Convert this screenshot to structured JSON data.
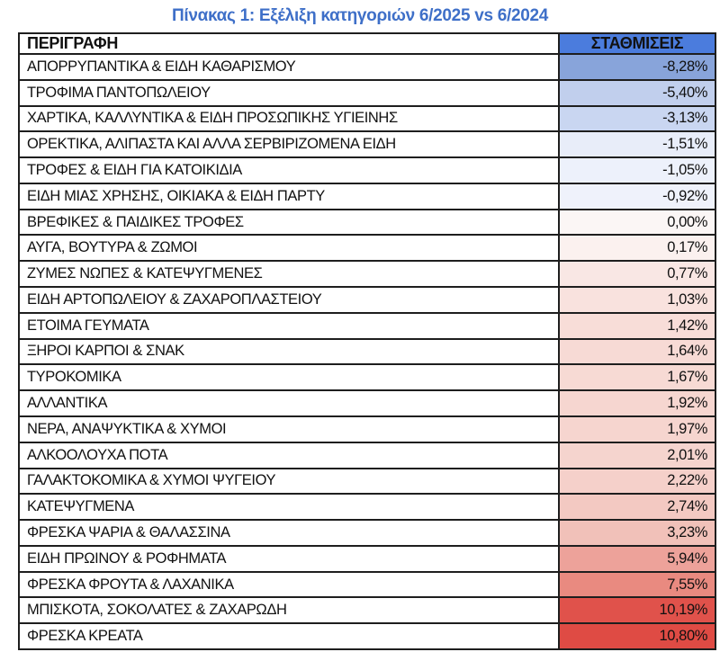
{
  "title": "Πίνακας 1: Εξέλιξη κατηγοριών 6/2025 vs 6/2024",
  "colors": {
    "title_text": "#3E6FC8",
    "header_weights_bg": "#4B7CDD",
    "border": "#1E1E1E",
    "scale_min_blue": "#88A4DA",
    "scale_mid_white": "#FBF6F5",
    "scale_max_red": "#DF4B44"
  },
  "table": {
    "headers": {
      "description": "ΠΕΡΙΓΡΑΦΗ",
      "weights": "ΣΤΑΘΜΙΣΕΙΣ"
    },
    "rows": [
      {
        "label": "ΑΠΟΡΡΥΠΑΝΤΙΚΑ & ΕΙΔΗ ΚΑΘΑΡΙΣΜΟΥ",
        "value": "-8,28%",
        "color": "#88A4DA"
      },
      {
        "label": "ΤΡΟΦΙΜΑ ΠΑΝΤΟΠΩΛΕΙΟΥ",
        "value": "-5,40%",
        "color": "#C1CFED"
      },
      {
        "label": "ΧΑΡΤΙΚΑ, ΚΑΛΛΥΝΤΙΚΑ & ΕΙΔΗ ΠΡΟΣΩΠΙΚΗΣ ΥΓΙΕΙΝΗΣ",
        "value": "-3,13%",
        "color": "#C9D6F1"
      },
      {
        "label": "ΟΡΕΚΤΙΚΑ, ΑΛΙΠΑΣΤΑ ΚΑΙ ΑΛΛΑ ΣΕΡΒΙΡΙΖΟΜΕΝΑ ΕΙΔΗ",
        "value": "-1,51%",
        "color": "#E8EDF9"
      },
      {
        "label": "ΤΡΟΦΕΣ & ΕΙΔΗ ΓΙΑ ΚΑΤΟΙΚΙΔΙΑ",
        "value": "-1,05%",
        "color": "#EDF1FB"
      },
      {
        "label": "ΕΙΔΗ ΜΙΑΣ ΧΡΗΣΗΣ, ΟΙΚΙΑΚΑ & ΕΙΔΗ ΠΑΡΤΥ",
        "value": "-0,92%",
        "color": "#EFF2FB"
      },
      {
        "label": "ΒΡΕΦΙΚΕΣ & ΠΑΙΔΙΚΕΣ ΤΡΟΦΕΣ",
        "value": "0,00%",
        "color": "#FBF6F5"
      },
      {
        "label": "ΑΥΓΑ, ΒΟΥΤΥΡΑ & ΖΩΜΟΙ",
        "value": "0,17%",
        "color": "#FBF1EF"
      },
      {
        "label": "ΖΥΜΕΣ ΝΩΠΕΣ & ΚΑΤΕΨΥΓΜΕΝΕΣ",
        "value": "0,77%",
        "color": "#F9E7E4"
      },
      {
        "label": "ΕΙΔΗ ΑΡΤΟΠΩΛΕΙΟΥ & ΖΑΧΑΡΟΠΛΑΣΤΕΙΟΥ",
        "value": "1,03%",
        "color": "#F9E2DE"
      },
      {
        "label": "ΕΤΟΙΜΑ ΓΕΥΜΑΤΑ",
        "value": "1,42%",
        "color": "#F8DDD8"
      },
      {
        "label": "ΞΗΡΟΙ ΚΑΡΠΟΙ & ΣΝΑΚ",
        "value": "1,64%",
        "color": "#F7DAD5"
      },
      {
        "label": "ΤΥΡΟΚΟΜΙΚΑ",
        "value": "1,67%",
        "color": "#F7DAD4"
      },
      {
        "label": "ΑΛΛΑΝΤΙΚΑ",
        "value": "1,92%",
        "color": "#F6D6D0"
      },
      {
        "label": "ΝΕΡΑ, ΑΝΑΨΥΚΤΙΚΑ & ΧΥΜΟΙ",
        "value": "1,97%",
        "color": "#F6D5CF"
      },
      {
        "label": "ΑΛΚΟΟΛΟΥΧΑ ΠΟΤΑ",
        "value": "2,01%",
        "color": "#F5D4CE"
      },
      {
        "label": "ΓΑΛΑΚΤΟΚΟΜΙΚΑ & ΧΥΜΟΙ ΨΥΓΕΙΟΥ",
        "value": "2,22%",
        "color": "#F5D0CA"
      },
      {
        "label": "ΚΑΤΕΨΥΓΜΕΝΑ",
        "value": "2,74%",
        "color": "#F3C9C2"
      },
      {
        "label": "ΦΡΕΣΚΑ ΨΑΡΙΑ & ΘΑΛΑΣΣΙΝΑ",
        "value": "3,23%",
        "color": "#F1C1B9"
      },
      {
        "label": "ΕΙΔΗ ΠΡΩΙΝΟΥ & ΡΟΦΗΜΑΤΑ",
        "value": "5,94%",
        "color": "#EDA29A"
      },
      {
        "label": "ΦΡΕΣΚΑ ΦΡΟΥΤΑ & ΛΑΧΑΝΙΚΑ",
        "value": "7,55%",
        "color": "#E98A80"
      },
      {
        "label": "ΜΠΙΣΚΟΤΑ, ΣΟΚΟΛΑΤΕΣ & ΖΑΧΑΡΩΔΗ",
        "value": "10,19%",
        "color": "#E0524B"
      },
      {
        "label": "ΦΡΕΣΚΑ ΚΡΕΑΤΑ",
        "value": "10,80%",
        "color": "#DF4B44"
      }
    ]
  },
  "chart_data": {
    "type": "table",
    "title": "Πίνακας 1: Εξέλιξη κατηγοριών 6/2025 vs 6/2024",
    "columns": [
      "ΠΕΡΙΓΡΑΦΗ",
      "ΣΤΑΘΜΙΣΕΙΣ"
    ],
    "categories": [
      "ΑΠΟΡΡΥΠΑΝΤΙΚΑ & ΕΙΔΗ ΚΑΘΑΡΙΣΜΟΥ",
      "ΤΡΟΦΙΜΑ ΠΑΝΤΟΠΩΛΕΙΟΥ",
      "ΧΑΡΤΙΚΑ, ΚΑΛΛΥΝΤΙΚΑ & ΕΙΔΗ ΠΡΟΣΩΠΙΚΗΣ ΥΓΙΕΙΝΗΣ",
      "ΟΡΕΚΤΙΚΑ, ΑΛΙΠΑΣΤΑ ΚΑΙ ΑΛΛΑ ΣΕΡΒΙΡΙΖΟΜΕΝΑ ΕΙΔΗ",
      "ΤΡΟΦΕΣ & ΕΙΔΗ ΓΙΑ ΚΑΤΟΙΚΙΔΙΑ",
      "ΕΙΔΗ ΜΙΑΣ ΧΡΗΣΗΣ, ΟΙΚΙΑΚΑ & ΕΙΔΗ ΠΑΡΤΥ",
      "ΒΡΕΦΙΚΕΣ & ΠΑΙΔΙΚΕΣ ΤΡΟΦΕΣ",
      "ΑΥΓΑ, ΒΟΥΤΥΡΑ & ΖΩΜΟΙ",
      "ΖΥΜΕΣ ΝΩΠΕΣ & ΚΑΤΕΨΥΓΜΕΝΕΣ",
      "ΕΙΔΗ ΑΡΤΟΠΩΛΕΙΟΥ & ΖΑΧΑΡΟΠΛΑΣΤΕΙΟΥ",
      "ΕΤΟΙΜΑ ΓΕΥΜΑΤΑ",
      "ΞΗΡΟΙ ΚΑΡΠΟΙ & ΣΝΑΚ",
      "ΤΥΡΟΚΟΜΙΚΑ",
      "ΑΛΛΑΝΤΙΚΑ",
      "ΝΕΡΑ, ΑΝΑΨΥΚΤΙΚΑ & ΧΥΜΟΙ",
      "ΑΛΚΟΟΛΟΥΧΑ ΠΟΤΑ",
      "ΓΑΛΑΚΤΟΚΟΜΙΚΑ & ΧΥΜΟΙ ΨΥΓΕΙΟΥ",
      "ΚΑΤΕΨΥΓΜΕΝΑ",
      "ΦΡΕΣΚΑ ΨΑΡΙΑ & ΘΑΛΑΣΣΙΝΑ",
      "ΕΙΔΗ ΠΡΩΙΝΟΥ & ΡΟΦΗΜΑΤΑ",
      "ΦΡΕΣΚΑ ΦΡΟΥΤΑ & ΛΑΧΑΝΙΚΑ",
      "ΜΠΙΣΚΟΤΑ, ΣΟΚΟΛΑΤΕΣ & ΖΑΧΑΡΩΔΗ",
      "ΦΡΕΣΚΑ ΚΡΕΑΤΑ"
    ],
    "values": [
      -8.28,
      -5.4,
      -3.13,
      -1.51,
      -1.05,
      -0.92,
      0.0,
      0.17,
      0.77,
      1.03,
      1.42,
      1.64,
      1.67,
      1.92,
      1.97,
      2.01,
      2.22,
      2.74,
      3.23,
      5.94,
      7.55,
      10.19,
      10.8
    ],
    "value_unit": "%",
    "value_format": "comma decimal separator",
    "sort": "ascending by value",
    "color_scale": "blue (most negative) through white (zero) to red (most positive)"
  }
}
